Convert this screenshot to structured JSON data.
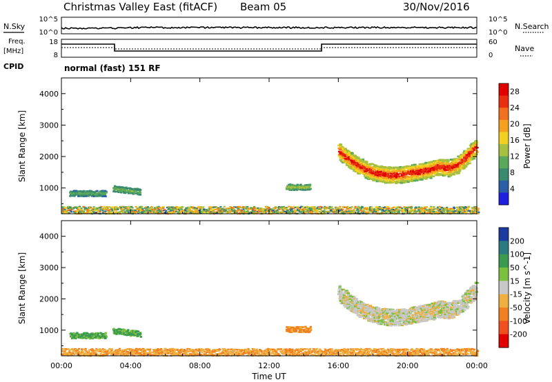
{
  "header": {
    "station": "Christmas Valley East (fitACF)",
    "beam": "Beam 05",
    "date": "30/Nov/2016"
  },
  "params": {
    "nsky_label": "N.Sky",
    "nsky_ticks": [
      "10^5",
      "10^0"
    ],
    "nsearch_label": "N.Search",
    "nsearch_ticks": [
      "10^5",
      "10^0"
    ],
    "freq_label_1": "Freq.",
    "freq_label_2": "[MHz]",
    "freq_ticks": [
      "18",
      "8"
    ],
    "nave_label": "Nave",
    "nave_ticks": [
      "60",
      "0"
    ],
    "cpid_label": "CPID",
    "cpid_text": "normal (fast) 151 RF"
  },
  "colors": {
    "power": [
      "#1f1fe0",
      "#2a5fa8",
      "#3a8a70",
      "#5aa85a",
      "#a8c040",
      "#f0d020",
      "#f5a020",
      "#f07020",
      "#e83010",
      "#e00000"
    ],
    "velocity": [
      "#e00000",
      "#f05020",
      "#f08020",
      "#f0b040",
      "#c8c8c8",
      "#7cc040",
      "#3a9a50",
      "#2a7a80",
      "#1a3aa0"
    ]
  },
  "chart_data": [
    {
      "type": "heatmap",
      "name": "power",
      "xlabel": "",
      "ylabel": "Slant Range [km]",
      "xlim": [
        0,
        24
      ],
      "ylim": [
        180,
        4500
      ],
      "x_ticks": [
        "00:00",
        "04:00",
        "08:00",
        "12:00",
        "16:00",
        "20:00",
        "00:00"
      ],
      "y_ticks": [
        1000,
        2000,
        3000,
        4000
      ],
      "colorbar": {
        "label": "Power [dB]",
        "ticks": [
          4,
          8,
          12,
          16,
          20,
          24,
          28
        ],
        "range": [
          0,
          30
        ]
      },
      "regions": [
        {
          "x_start": 16.0,
          "x_end": 23.9,
          "center_km": [
            2200,
            1950,
            1750,
            1600,
            1500,
            1450,
            1420,
            1450,
            1500,
            1550,
            1600,
            1700,
            1650,
            1750,
            2000,
            2300
          ],
          "value": 25
        },
        {
          "x_start": 0.5,
          "x_end": 2.5,
          "center_km": [
            850,
            850
          ],
          "value": 10
        },
        {
          "x_start": 3.0,
          "x_end": 4.5,
          "center_km": [
            1000,
            900
          ],
          "value": 12
        },
        {
          "x_start": 13.0,
          "x_end": 14.3,
          "center_km": [
            1050,
            1050
          ],
          "value": 14
        },
        {
          "x_start": 0.0,
          "x_end": 24.0,
          "center_km": [
            300,
            300
          ],
          "value": 16
        }
      ]
    },
    {
      "type": "heatmap",
      "name": "velocity",
      "xlabel": "Time UT",
      "ylabel": "Slant Range [km]",
      "xlim": [
        0,
        24
      ],
      "ylim": [
        180,
        4500
      ],
      "x_ticks": [
        "00:00",
        "04:00",
        "08:00",
        "12:00",
        "16:00",
        "20:00",
        "00:00"
      ],
      "y_ticks": [
        1000,
        2000,
        3000,
        4000
      ],
      "colorbar": {
        "label": "Velocity [m s^-1]",
        "ticks": [
          200,
          100,
          50,
          15,
          -15,
          -50,
          -100,
          -200
        ]
      },
      "regions": [
        {
          "x_start": 16.0,
          "x_end": 23.9,
          "center_km": [
            2200,
            1950,
            1750,
            1600,
            1500,
            1450,
            1420,
            1450,
            1500,
            1550,
            1600,
            1700,
            1650,
            1750,
            2000,
            2300
          ],
          "value": 0
        },
        {
          "x_start": 0.5,
          "x_end": 2.5,
          "center_km": [
            850,
            850
          ],
          "value": 60
        },
        {
          "x_start": 3.0,
          "x_end": 4.5,
          "center_km": [
            1000,
            900
          ],
          "value": 60
        },
        {
          "x_start": 13.0,
          "x_end": 14.3,
          "center_km": [
            1050,
            1050
          ],
          "value": -60
        },
        {
          "x_start": 0.0,
          "x_end": 24.0,
          "center_km": [
            300,
            300
          ],
          "value": -40
        }
      ]
    }
  ]
}
